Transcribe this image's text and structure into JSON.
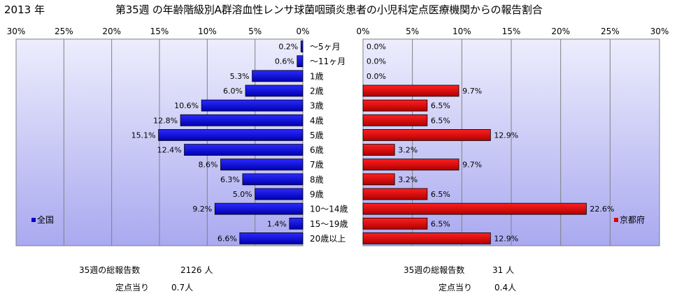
{
  "title": {
    "year": "2013 年",
    "main": "第35週 の年齢階級別A群溶血性レンサ球菌咽頭炎患者の小児科定点医療機関からの報告割合"
  },
  "chart_data": {
    "type": "bar",
    "orientation": "horizontal-butterfly",
    "categories": [
      "～5ヶ月",
      "～11ヶ月",
      "1歳",
      "2歳",
      "3歳",
      "4歳",
      "5歳",
      "6歳",
      "7歳",
      "8歳",
      "9歳",
      "10～14歳",
      "15～19歳",
      "20歳以上"
    ],
    "xlim": [
      0,
      30
    ],
    "x_ticks": [
      "0%",
      "5%",
      "10%",
      "15%",
      "20%",
      "25%",
      "30%"
    ],
    "series": [
      {
        "name": "全国",
        "side": "left",
        "color": "#0000cc",
        "values": [
          0.2,
          0.6,
          5.3,
          6.0,
          10.6,
          12.8,
          15.1,
          12.4,
          8.6,
          6.3,
          5.0,
          9.2,
          1.4,
          6.6
        ],
        "labels": [
          "0.2%",
          "0.6%",
          "5.3%",
          "6.0%",
          "10.6%",
          "12.8%",
          "15.1%",
          "12.4%",
          "8.6%",
          "6.3%",
          "5.0%",
          "9.2%",
          "1.4%",
          "6.6%"
        ]
      },
      {
        "name": "京都府",
        "side": "right",
        "color": "#dd0000",
        "values": [
          0.0,
          0.0,
          0.0,
          9.7,
          6.5,
          6.5,
          12.9,
          3.2,
          9.7,
          3.2,
          6.5,
          22.6,
          6.5,
          12.9
        ],
        "labels": [
          "0.0%",
          "0.0%",
          "0.0%",
          "9.7%",
          "6.5%",
          "6.5%",
          "12.9%",
          "3.2%",
          "9.7%",
          "3.2%",
          "6.5%",
          "22.6%",
          "6.5%",
          "12.9%"
        ]
      }
    ],
    "grid": true,
    "legend_placement": "inside-bottom-corner"
  },
  "summary": {
    "national": {
      "total_label": "35週の総報告数",
      "total_value": "2126 人",
      "per_label": "定点当り",
      "per_value": "0.7人"
    },
    "kyoto": {
      "total_label": "35週の総報告数",
      "total_value": "31 人",
      "per_label": "定点当り",
      "per_value": "0.4人"
    }
  }
}
